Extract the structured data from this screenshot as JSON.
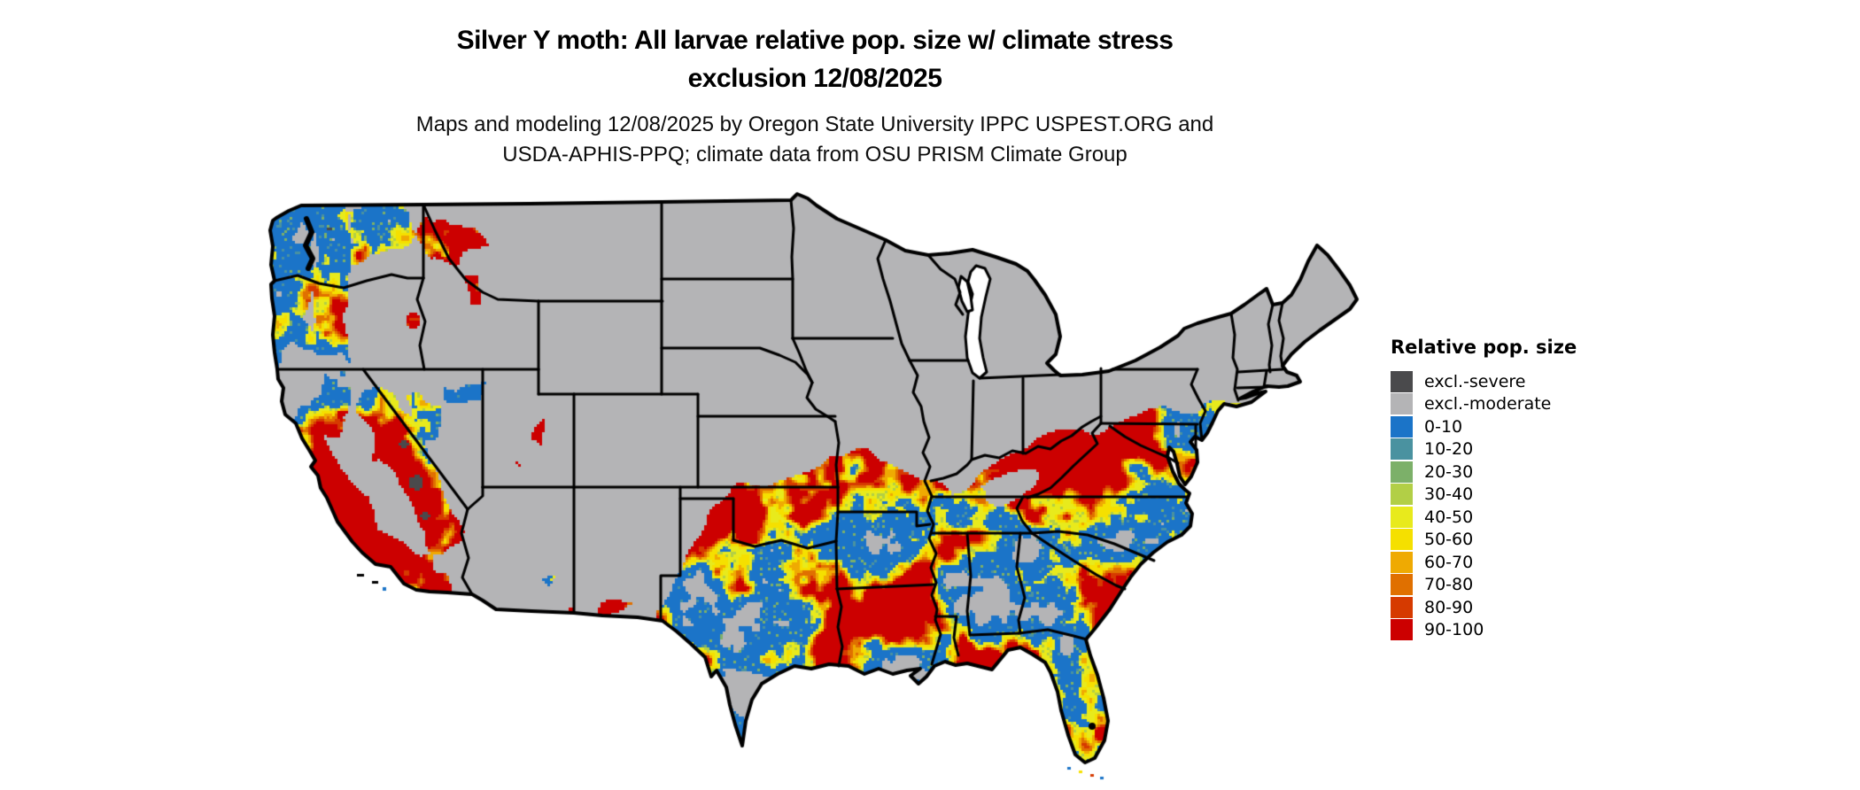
{
  "header": {
    "title_line1": "Silver Y moth: All larvae relative pop. size w/ climate stress",
    "title_line2": "exclusion 12/08/2025",
    "subtitle_line1": "Maps and modeling 12/08/2025 by Oregon State University IPPC USPEST.ORG and",
    "subtitle_line2": "USDA-APHIS-PPQ; climate data from OSU PRISM Climate Group"
  },
  "legend": {
    "title": "Relative pop. size",
    "items": [
      {
        "label": "excl.-severe",
        "color": "#4a4a4c"
      },
      {
        "label": "excl.-moderate",
        "color": "#b4b4b6"
      },
      {
        "label": "0-10",
        "color": "#1b74c8"
      },
      {
        "label": "10-20",
        "color": "#4a92a0"
      },
      {
        "label": "20-30",
        "color": "#7cb069"
      },
      {
        "label": "30-40",
        "color": "#b2cf46"
      },
      {
        "label": "40-50",
        "color": "#e8ea1c"
      },
      {
        "label": "50-60",
        "color": "#f5e000"
      },
      {
        "label": "60-70",
        "color": "#efaa02"
      },
      {
        "label": "70-80",
        "color": "#e07000"
      },
      {
        "label": "80-90",
        "color": "#d63a00"
      },
      {
        "label": "90-100",
        "color": "#cc0000"
      }
    ]
  },
  "map": {
    "land_color": "#b4b4b6",
    "border_color": "#000000",
    "water_color": "#ffffff"
  }
}
